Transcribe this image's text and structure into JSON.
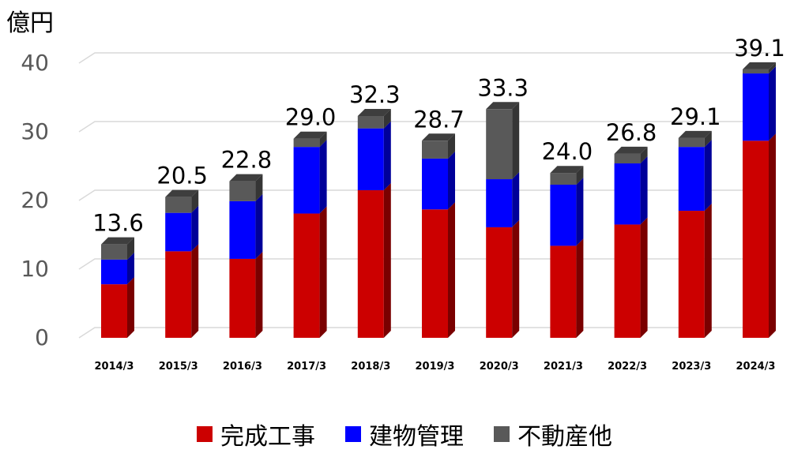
{
  "chart_data": {
    "type": "bar",
    "stacked": true,
    "unit_label": "億円",
    "categories": [
      "2014/3",
      "2015/3",
      "2016/3",
      "2017/3",
      "2018/3",
      "2019/3",
      "2020/3",
      "2021/3",
      "2022/3",
      "2023/3",
      "2024/3"
    ],
    "series": [
      {
        "name": "完成工事",
        "color": "#cc0000",
        "values": [
          7.8,
          12.6,
          11.5,
          18.1,
          21.5,
          18.7,
          16.1,
          13.4,
          16.5,
          18.5,
          28.7
        ]
      },
      {
        "name": "建物管理",
        "color": "#0000ff",
        "values": [
          3.6,
          5.6,
          8.4,
          9.7,
          9.0,
          7.4,
          7.0,
          8.9,
          8.9,
          9.3,
          9.8
        ]
      },
      {
        "name": "不動産他",
        "color": "#595959",
        "values": [
          2.2,
          2.3,
          2.9,
          1.2,
          1.8,
          2.6,
          10.2,
          1.7,
          1.4,
          1.3,
          0.6
        ]
      }
    ],
    "totals": [
      "13.6",
      "20.5",
      "22.8",
      "29.0",
      "32.3",
      "28.7",
      "33.3",
      "24.0",
      "26.8",
      "29.1",
      "39.1"
    ],
    "yticks": [
      0,
      10,
      20,
      30,
      40
    ],
    "ylim": [
      0,
      40
    ],
    "grid": true,
    "legend_position": "bottom"
  }
}
